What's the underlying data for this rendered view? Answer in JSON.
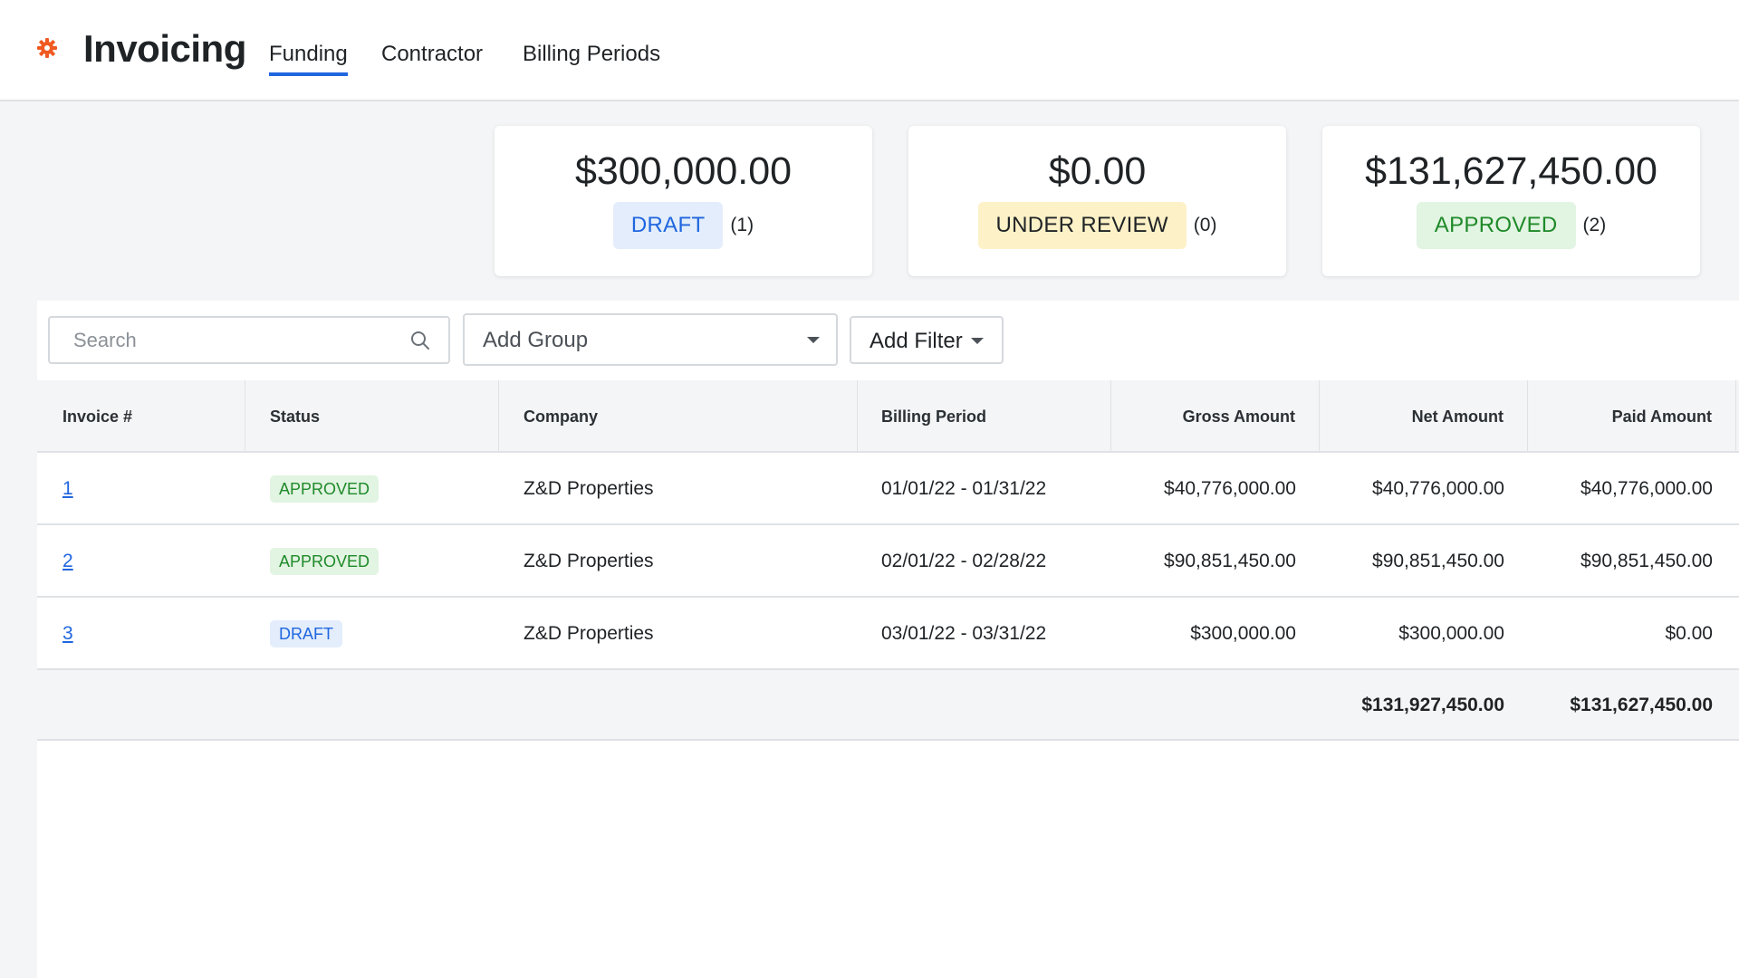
{
  "header": {
    "title": "Invoicing",
    "logo_icon": "gear-icon",
    "accent": "#f05a22",
    "tabs": [
      {
        "label": "Funding",
        "active": true
      },
      {
        "label": "Contractor",
        "active": false
      },
      {
        "label": "Billing Periods",
        "active": false
      }
    ]
  },
  "summary": [
    {
      "amount": "$300,000.00",
      "status": "DRAFT",
      "count": "(1)"
    },
    {
      "amount": "$0.00",
      "status": "UNDER REVIEW",
      "count": "(0)"
    },
    {
      "amount": "$131,627,450.00",
      "status": "APPROVED",
      "count": "(2)"
    }
  ],
  "toolbar": {
    "search_placeholder": "Search",
    "add_group_label": "Add Group",
    "add_filter_label": "Add Filter"
  },
  "table": {
    "columns": [
      "Invoice #",
      "Status",
      "Company",
      "Billing Period",
      "Gross Amount",
      "Net Amount",
      "Paid Amount"
    ],
    "rows": [
      {
        "invoice": "1",
        "status": "APPROVED",
        "company": "Z&D Properties",
        "period": "01/01/22 - 01/31/22",
        "gross": "$40,776,000.00",
        "net": "$40,776,000.00",
        "paid": "$40,776,000.00"
      },
      {
        "invoice": "2",
        "status": "APPROVED",
        "company": "Z&D Properties",
        "period": "02/01/22 - 02/28/22",
        "gross": "$90,851,450.00",
        "net": "$90,851,450.00",
        "paid": "$90,851,450.00"
      },
      {
        "invoice": "3",
        "status": "DRAFT",
        "company": "Z&D Properties",
        "period": "03/01/22 - 03/31/22",
        "gross": "$300,000.00",
        "net": "$300,000.00",
        "paid": "$0.00"
      }
    ],
    "totals": {
      "net": "$131,927,450.00",
      "paid": "$131,627,450.00"
    }
  }
}
